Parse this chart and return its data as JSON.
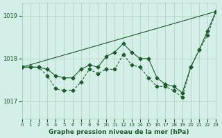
{
  "title": "Graphe pression niveau de la mer (hPa)",
  "bg_color": "#d4eee8",
  "grid_color": "#aaccbb",
  "line_color": "#1a5c2a",
  "line_color2": "#2d7a3a",
  "xlim": [
    0,
    23
  ],
  "ylim": [
    1016.6,
    1019.3
  ],
  "yticks": [
    1017,
    1018,
    1019
  ],
  "xticks": [
    0,
    1,
    2,
    3,
    4,
    5,
    6,
    7,
    8,
    9,
    10,
    11,
    12,
    13,
    14,
    15,
    16,
    17,
    18,
    19,
    20,
    21,
    22,
    23
  ],
  "series1": {
    "x": [
      0,
      1,
      2,
      3,
      4,
      5,
      6,
      7,
      8,
      9,
      10,
      11,
      12,
      13,
      14,
      15,
      16,
      17,
      18,
      19,
      20,
      21,
      22,
      23
    ],
    "y": [
      1017.8,
      1017.8,
      1017.8,
      1017.75,
      1017.6,
      1017.55,
      1017.55,
      1017.75,
      1017.85,
      1017.8,
      1018.05,
      1018.15,
      1018.35,
      1018.15,
      1018.0,
      1018.0,
      1017.55,
      1017.4,
      1017.35,
      1017.2,
      1017.8,
      1018.2,
      1018.65,
      1019.1
    ]
  },
  "series2": {
    "x": [
      0,
      1,
      2,
      3,
      4,
      5,
      6,
      7,
      8,
      9,
      10,
      11,
      12,
      13,
      14,
      15,
      16,
      17,
      18,
      19,
      20,
      21,
      22,
      23
    ],
    "y": [
      1017.8,
      1017.8,
      1017.8,
      1017.6,
      1017.3,
      1017.25,
      1017.25,
      1017.45,
      1017.75,
      1017.65,
      1017.75,
      1017.75,
      1018.1,
      1017.85,
      1017.8,
      1017.55,
      1017.35,
      1017.35,
      1017.25,
      1017.1,
      1017.8,
      1018.2,
      1018.55,
      1019.1
    ]
  },
  "series3": {
    "x": [
      0,
      23
    ],
    "y": [
      1017.8,
      1019.1
    ]
  }
}
